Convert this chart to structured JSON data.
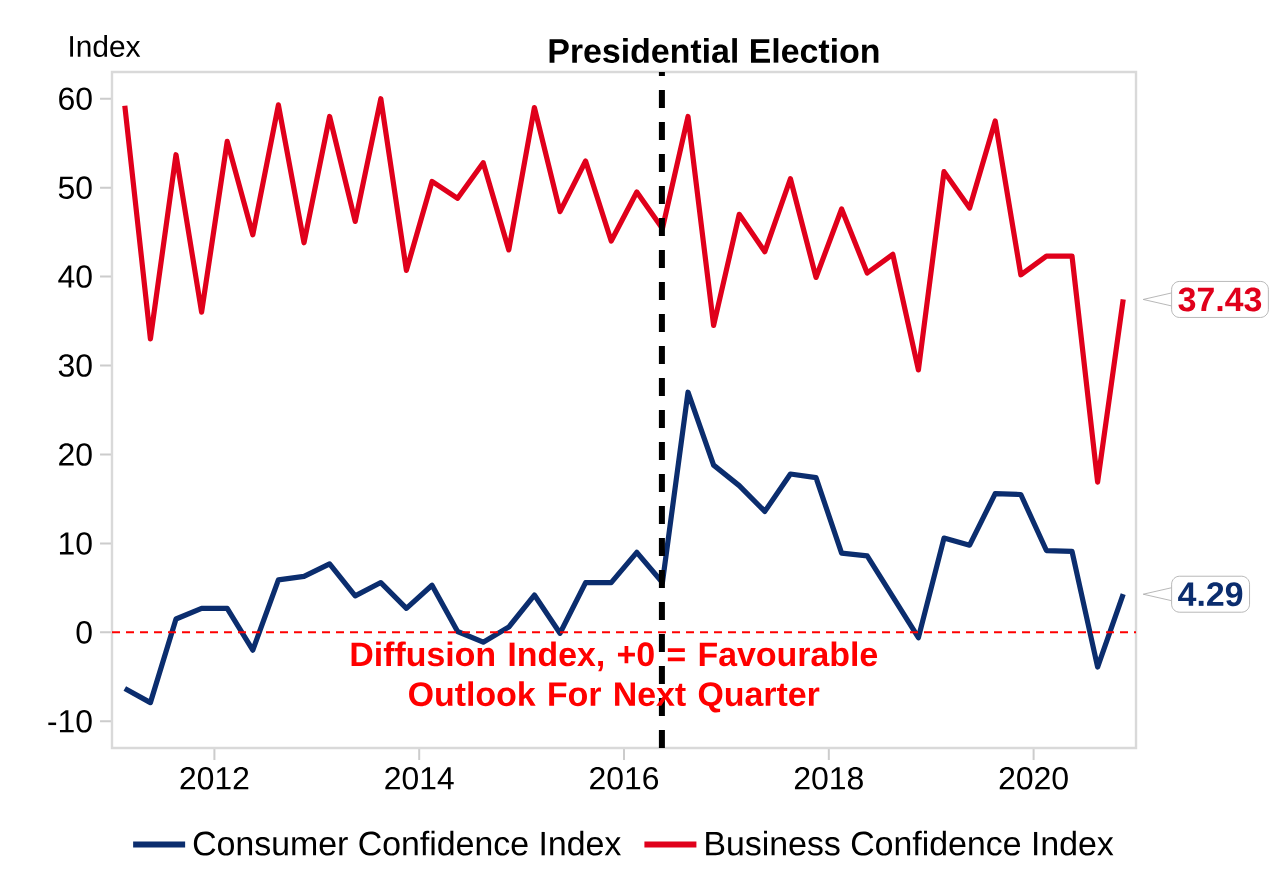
{
  "chart_data": {
    "type": "line",
    "ylabel": "Index",
    "x": [
      2011.125,
      2011.375,
      2011.625,
      2011.875,
      2012.125,
      2012.375,
      2012.625,
      2012.875,
      2013.125,
      2013.375,
      2013.625,
      2013.875,
      2014.125,
      2014.375,
      2014.625,
      2014.875,
      2015.125,
      2015.375,
      2015.625,
      2015.875,
      2016.125,
      2016.375,
      2016.625,
      2016.875,
      2017.125,
      2017.375,
      2017.625,
      2017.875,
      2018.125,
      2018.375,
      2018.625,
      2018.875,
      2019.125,
      2019.375,
      2019.625,
      2019.875,
      2020.125,
      2020.375,
      2020.625,
      2020.875
    ],
    "series": [
      {
        "name": "Consumer Confidence Index",
        "color": "#0b2d6e",
        "values": [
          -6.3,
          -7.9,
          1.5,
          2.7,
          2.7,
          -2.0,
          5.9,
          6.3,
          7.7,
          4.1,
          5.6,
          2.7,
          5.3,
          0.1,
          -1.1,
          0.6,
          4.2,
          -0.1,
          5.6,
          5.6,
          9.0,
          5.6,
          27.0,
          18.8,
          16.5,
          13.6,
          17.8,
          17.4,
          8.9,
          8.6,
          4.0,
          -0.6,
          10.6,
          9.8,
          15.6,
          15.5,
          9.2,
          9.1,
          -3.9,
          4.29
        ],
        "value_labels": [
          null,
          null,
          null,
          null,
          null,
          null,
          null,
          null,
          null,
          null,
          null,
          null,
          null,
          null,
          null,
          null,
          null,
          null,
          null,
          null,
          null,
          null,
          null,
          null,
          null,
          null,
          null,
          null,
          null,
          null,
          null,
          null,
          null,
          null,
          null,
          null,
          null,
          null,
          null,
          "4.29"
        ]
      },
      {
        "name": "Business Confidence Index",
        "color": "#e0001b",
        "values": [
          59.2,
          33.0,
          53.7,
          36.0,
          55.2,
          44.7,
          59.3,
          43.8,
          58,
          46.2,
          60,
          40.7,
          50.7,
          48.8,
          52.8,
          43.0,
          59,
          47.3,
          53.0,
          44.0,
          49.5,
          45.4,
          58,
          34.5,
          47.0,
          42.8,
          51.0,
          39.9,
          47.6,
          40.4,
          42.5,
          29.5,
          51.8,
          47.7,
          57.5,
          40.2,
          42.3,
          42.3,
          16.9,
          37.43
        ],
        "value_labels": [
          null,
          null,
          null,
          null,
          null,
          null,
          null,
          null,
          null,
          null,
          null,
          null,
          null,
          null,
          null,
          null,
          null,
          null,
          null,
          null,
          null,
          null,
          null,
          null,
          null,
          null,
          null,
          null,
          null,
          null,
          null,
          null,
          null,
          null,
          null,
          null,
          null,
          null,
          null,
          "37.43"
        ]
      }
    ],
    "xlim": [
      2011,
      2021
    ],
    "ylim": [
      -13,
      63
    ],
    "xticks": [
      2012,
      2014,
      2016,
      2018,
      2020
    ],
    "yticks": [
      -10,
      0,
      10,
      20,
      30,
      40,
      50,
      60
    ],
    "ref_lines": [
      {
        "axis": "x",
        "value": 2016.37,
        "label": "Presidential Election",
        "color": "#000000",
        "line_style": "dashed"
      },
      {
        "axis": "y",
        "value": 0,
        "label": "Diffusion Index, +0 = Favourable Outlook For Next Quarter",
        "color": "#ff0000",
        "line_style": "dashed"
      }
    ],
    "grid": false,
    "legend": "bottom",
    "marker": "none",
    "line_style": "solid"
  }
}
